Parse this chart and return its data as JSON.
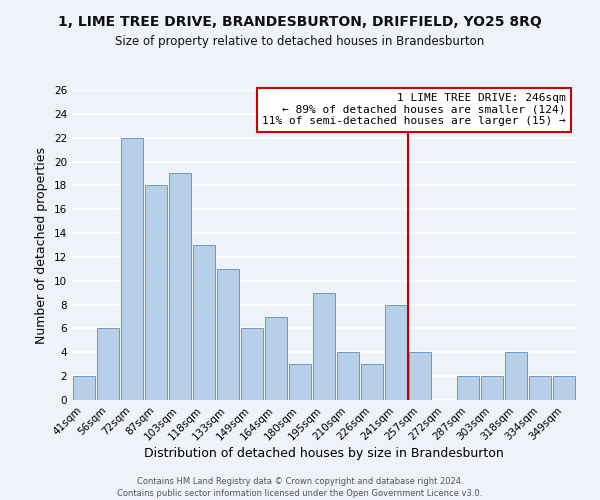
{
  "title": "1, LIME TREE DRIVE, BRANDESBURTON, DRIFFIELD, YO25 8RQ",
  "subtitle": "Size of property relative to detached houses in Brandesburton",
  "xlabel": "Distribution of detached houses by size in Brandesburton",
  "ylabel": "Number of detached properties",
  "bin_labels": [
    "41sqm",
    "56sqm",
    "72sqm",
    "87sqm",
    "103sqm",
    "118sqm",
    "133sqm",
    "149sqm",
    "164sqm",
    "180sqm",
    "195sqm",
    "210sqm",
    "226sqm",
    "241sqm",
    "257sqm",
    "272sqm",
    "287sqm",
    "303sqm",
    "318sqm",
    "334sqm",
    "349sqm"
  ],
  "bar_values": [
    2,
    6,
    22,
    18,
    19,
    13,
    11,
    6,
    7,
    3,
    9,
    4,
    3,
    8,
    4,
    0,
    2,
    2,
    4,
    2,
    2
  ],
  "bar_color": "#b8cfe8",
  "bar_edge_color": "#5a8fc0",
  "vline_x": 13.5,
  "vline_color": "#cc0000",
  "annotation_title": "1 LIME TREE DRIVE: 246sqm",
  "annotation_line1": "← 89% of detached houses are smaller (124)",
  "annotation_line2": "11% of semi-detached houses are larger (15) →",
  "annotation_box_color": "#ffffff",
  "annotation_box_edge": "#cc0000",
  "ylim": [
    0,
    26
  ],
  "yticks": [
    0,
    2,
    4,
    6,
    8,
    10,
    12,
    14,
    16,
    18,
    20,
    22,
    24,
    26
  ],
  "footer1": "Contains HM Land Registry data © Crown copyright and database right 2024.",
  "footer2": "Contains public sector information licensed under the Open Government Licence v3.0.",
  "bg_color": "#eef2f9",
  "grid_color": "#ffffff",
  "title_fontsize": 10,
  "subtitle_fontsize": 8.5,
  "axis_label_fontsize": 9,
  "tick_fontsize": 7.5,
  "annot_fontsize": 8
}
